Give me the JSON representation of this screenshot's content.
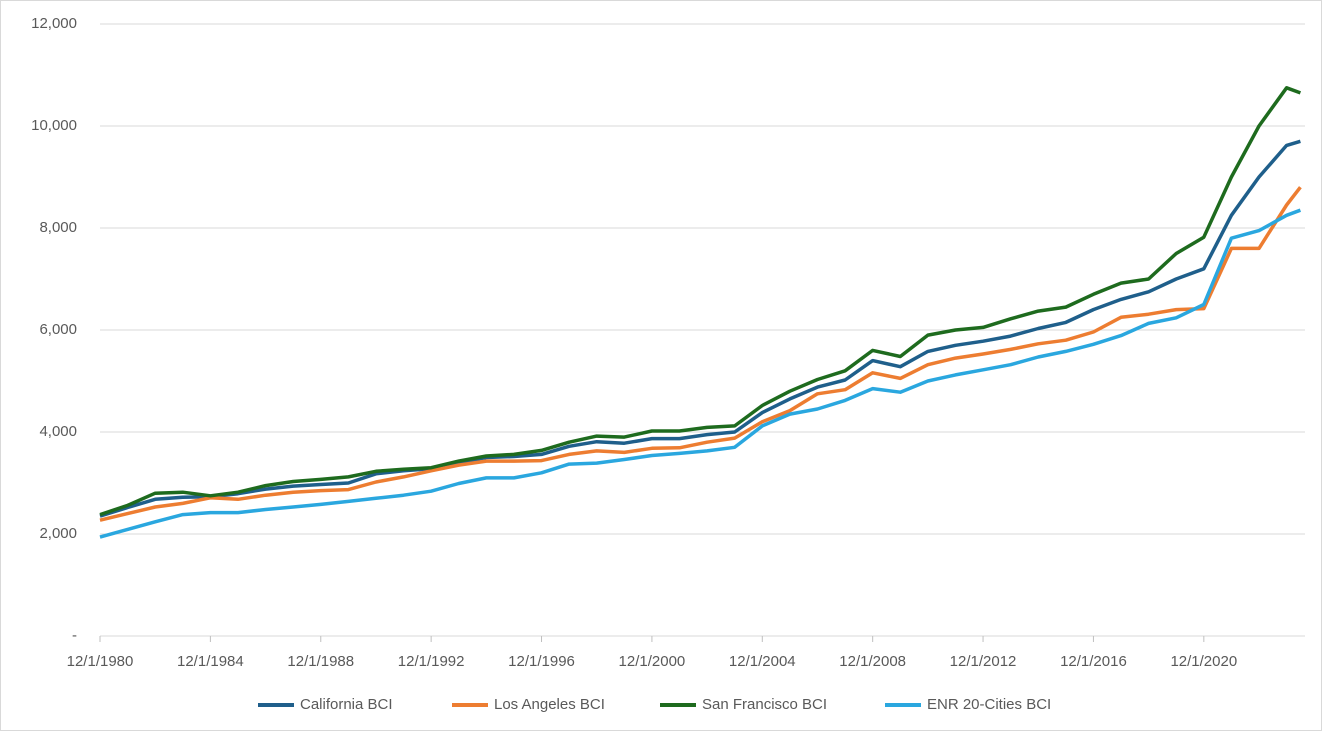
{
  "chart_data": {
    "type": "line",
    "x": [
      "12/1/1980",
      "12/1/1981",
      "12/1/1982",
      "12/1/1983",
      "12/1/1984",
      "12/1/1985",
      "12/1/1986",
      "12/1/1987",
      "12/1/1988",
      "12/1/1989",
      "12/1/1990",
      "12/1/1991",
      "12/1/1992",
      "12/1/1993",
      "12/1/1994",
      "12/1/1995",
      "12/1/1996",
      "12/1/1997",
      "12/1/1998",
      "12/1/1999",
      "12/1/2000",
      "12/1/2001",
      "12/1/2002",
      "12/1/2003",
      "12/1/2004",
      "12/1/2005",
      "12/1/2006",
      "12/1/2007",
      "12/1/2008",
      "12/1/2009",
      "12/1/2010",
      "12/1/2011",
      "12/1/2012",
      "12/1/2013",
      "12/1/2014",
      "12/1/2015",
      "12/1/2016",
      "12/1/2017",
      "12/1/2018",
      "12/1/2019",
      "12/1/2020",
      "12/1/2021",
      "12/1/2022",
      "12/1/2023",
      "6/1/2024"
    ],
    "series": [
      {
        "name": "California BCI",
        "color": "#1f5f8b",
        "values": [
          2350,
          2520,
          2680,
          2720,
          2730,
          2790,
          2880,
          2940,
          2970,
          3000,
          3180,
          3240,
          3280,
          3400,
          3500,
          3520,
          3560,
          3720,
          3810,
          3780,
          3870,
          3870,
          3950,
          4000,
          4380,
          4650,
          4880,
          5020,
          5400,
          5280,
          5580,
          5700,
          5780,
          5880,
          6030,
          6150,
          6400,
          6600,
          6750,
          7000,
          7200,
          8250,
          9000,
          9620,
          9700
        ]
      },
      {
        "name": "Los Angeles BCI",
        "color": "#ed7d31",
        "values": [
          2270,
          2400,
          2530,
          2600,
          2710,
          2680,
          2760,
          2820,
          2850,
          2870,
          3020,
          3120,
          3240,
          3350,
          3430,
          3430,
          3440,
          3560,
          3630,
          3600,
          3680,
          3690,
          3800,
          3880,
          4200,
          4420,
          4750,
          4830,
          5160,
          5050,
          5320,
          5450,
          5530,
          5620,
          5730,
          5800,
          5960,
          6250,
          6310,
          6400,
          6420,
          7600,
          7600,
          8450,
          8800
        ]
      },
      {
        "name": "San Francisco BCI",
        "color": "#1e6b1e",
        "values": [
          2380,
          2560,
          2800,
          2820,
          2750,
          2820,
          2950,
          3030,
          3070,
          3120,
          3230,
          3270,
          3300,
          3430,
          3530,
          3560,
          3640,
          3800,
          3920,
          3900,
          4020,
          4020,
          4090,
          4120,
          4520,
          4800,
          5030,
          5200,
          5600,
          5480,
          5900,
          6000,
          6050,
          6220,
          6370,
          6450,
          6700,
          6920,
          7000,
          7500,
          7820,
          9000,
          10000,
          10750,
          10650
        ]
      },
      {
        "name": "ENR 20-Cities BCI",
        "color": "#2aa7df",
        "values": [
          1940,
          2090,
          2240,
          2380,
          2420,
          2420,
          2480,
          2530,
          2580,
          2640,
          2700,
          2760,
          2840,
          2990,
          3100,
          3100,
          3200,
          3370,
          3390,
          3460,
          3540,
          3580,
          3630,
          3700,
          4120,
          4350,
          4450,
          4620,
          4850,
          4780,
          5000,
          5120,
          5220,
          5320,
          5470,
          5580,
          5720,
          5890,
          6130,
          6240,
          6500,
          7800,
          7950,
          8250,
          8350
        ]
      }
    ],
    "xlim": [
      "12/1/1980",
      "8/1/2024"
    ],
    "xticks": [
      "12/1/1980",
      "12/1/1984",
      "12/1/1988",
      "12/1/1992",
      "12/1/1996",
      "12/1/2000",
      "12/1/2004",
      "12/1/2008",
      "12/1/2012",
      "12/1/2016",
      "12/1/2020"
    ],
    "ylim": [
      0,
      12000
    ],
    "yticks": [
      {
        "value": 0,
        "label": "-"
      },
      {
        "value": 2000,
        "label": "2,000"
      },
      {
        "value": 4000,
        "label": "4,000"
      },
      {
        "value": 6000,
        "label": "6,000"
      },
      {
        "value": 8000,
        "label": "8,000"
      },
      {
        "value": 10000,
        "label": "10,000"
      },
      {
        "value": 12000,
        "label": "12,000"
      }
    ],
    "grid": true,
    "legend": "bottom"
  }
}
